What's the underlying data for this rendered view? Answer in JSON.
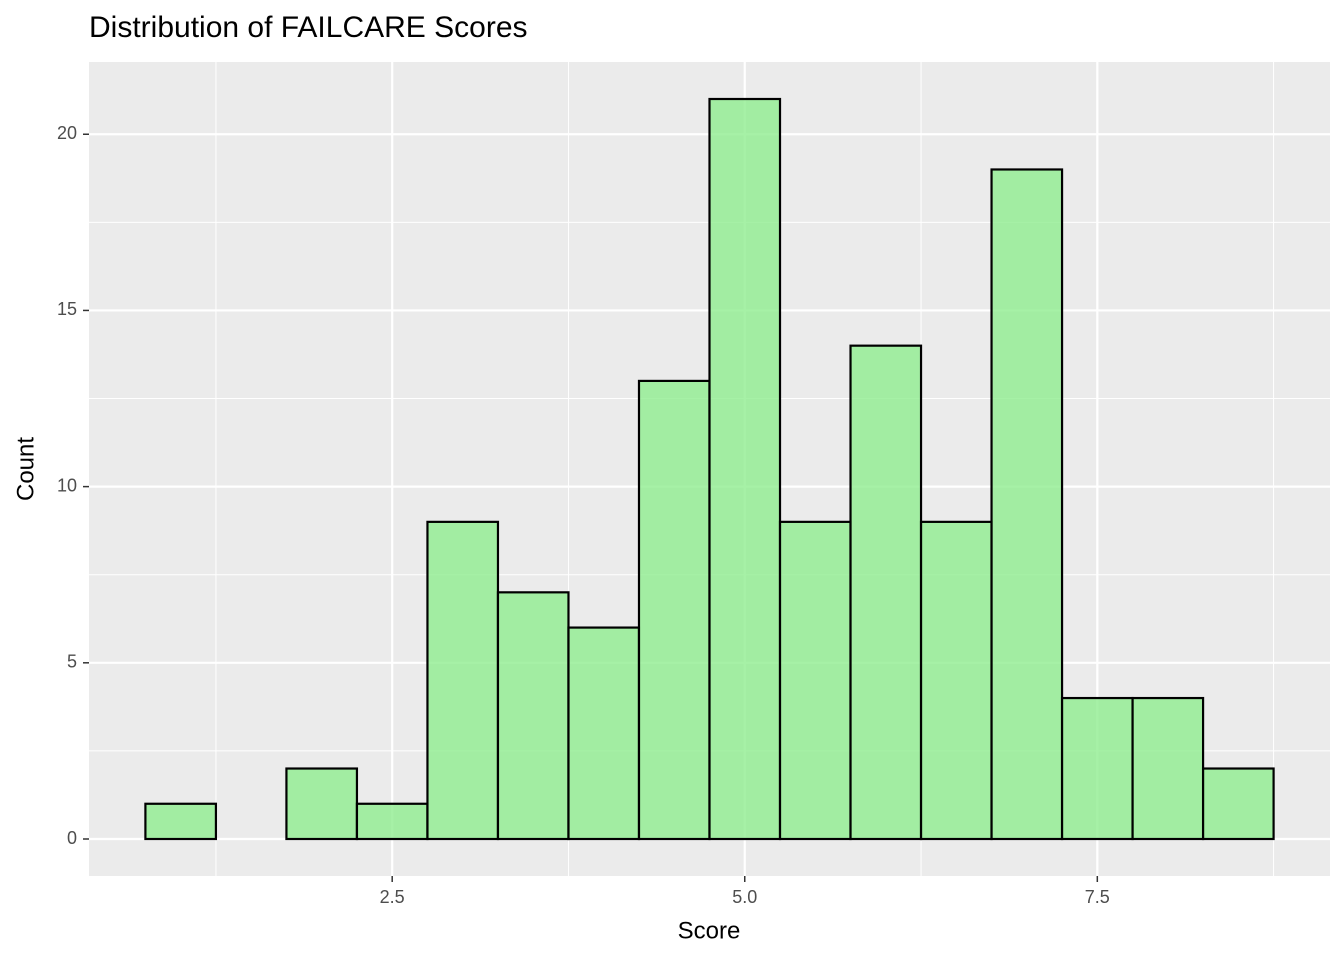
{
  "chart_data": {
    "type": "histogram",
    "title": "Distribution of FAILCARE Scores",
    "x_label": "Score",
    "y_label": "Count",
    "bins": [
      0.75,
      1.25,
      1.75,
      2.25,
      2.75,
      3.25,
      3.75,
      4.25,
      4.75,
      5.25,
      5.75,
      6.25,
      6.75,
      7.25,
      7.75,
      8.25,
      8.75
    ],
    "values": [
      1,
      0,
      2,
      1,
      9,
      7,
      6,
      13,
      21,
      9,
      14,
      9,
      19,
      4,
      4,
      2
    ],
    "color": "#90ee90",
    "opacity": 0.8,
    "edge_color": "#000000",
    "xlim": [
      0.35,
      9.15
    ],
    "ylim": [
      -1.05,
      22.05
    ],
    "xticks": [
      2.5,
      {
        "value": 5,
        "label": "5.0"
      },
      7.5
    ],
    "yticks": [
      0,
      5,
      10,
      15,
      20
    ],
    "x_minor_ticks": [
      1.25,
      3.75,
      6.25,
      8.75
    ],
    "y_minor_ticks": [
      2.5,
      7.5,
      12.5,
      17.5
    ],
    "grid": true
  }
}
